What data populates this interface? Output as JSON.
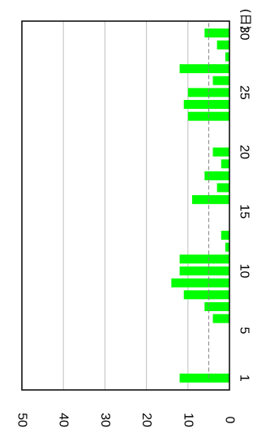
{
  "chart_data": {
    "type": "bar",
    "orientation": "rotated-90",
    "title": "",
    "xlabel": "",
    "ylabel": "",
    "x_unit": "(日)",
    "x_tick_labels": [
      "1",
      "5",
      "10",
      "15",
      "20",
      "25",
      "30"
    ],
    "y_tick_labels": [
      "0",
      "10",
      "20",
      "30",
      "40",
      "50"
    ],
    "ylim": [
      0,
      50
    ],
    "xlim": [
      0,
      31
    ],
    "grid": true,
    "categories": [
      1,
      2,
      3,
      4,
      5,
      6,
      7,
      8,
      9,
      10,
      11,
      12,
      13,
      14,
      15,
      16,
      17,
      18,
      19,
      20,
      21,
      22,
      23,
      24,
      25,
      26,
      27,
      28,
      29,
      30
    ],
    "values": [
      12,
      0,
      0,
      0,
      0,
      4,
      6,
      11,
      14,
      12,
      12,
      1,
      2,
      0,
      0,
      9,
      3,
      6,
      2,
      4,
      0,
      0,
      10,
      11,
      10,
      4,
      12,
      1,
      3,
      6
    ],
    "mean_line": 5,
    "bar_color": "#00ff00",
    "grid_color": "#c0c0c0",
    "mean_line_color": "#808080",
    "frame_color": "#000000"
  }
}
